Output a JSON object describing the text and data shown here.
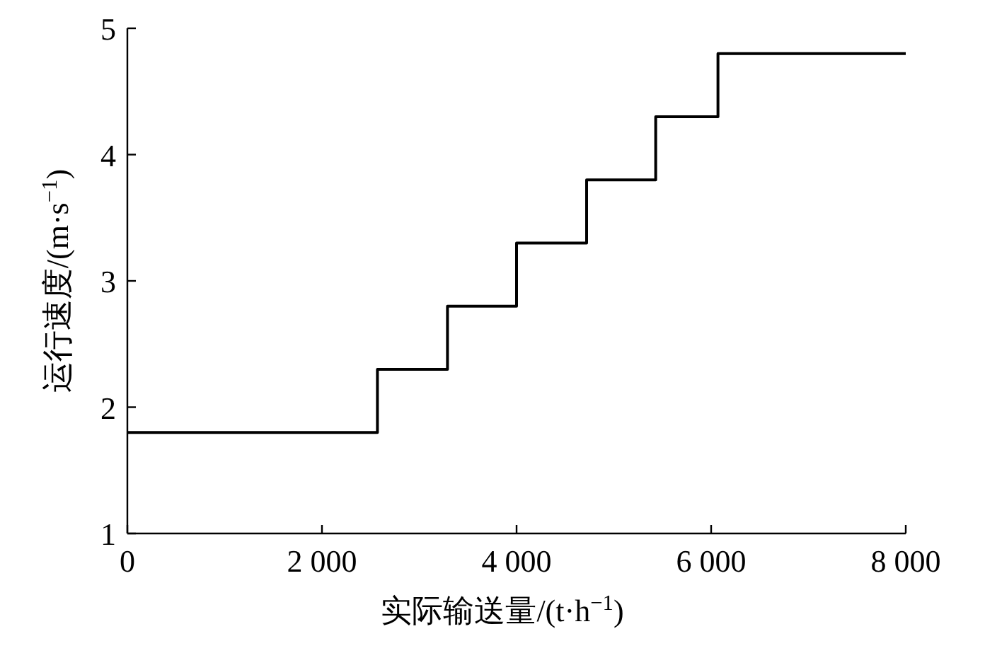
{
  "chart_data": {
    "type": "step",
    "xlabel": "实际输送量/(t·h$^{−1}$)",
    "ylabel": "运行速度/(m·s$^{−1}$)",
    "x": [
      0,
      2570,
      3290,
      4000,
      4720,
      5430,
      6070,
      8000
    ],
    "series": [
      {
        "color": "#000000",
        "values": [
          1.8,
          2.3,
          2.8,
          3.3,
          3.8,
          4.3,
          4.8,
          4.8
        ]
      }
    ],
    "xlim": [
      0,
      8000
    ],
    "ylim": [
      1,
      5
    ],
    "xticks": [
      0,
      {
        "value": 2000,
        "label": "2 000"
      },
      {
        "value": 4000,
        "label": "4 000"
      },
      {
        "value": 6000,
        "label": "6 000"
      },
      {
        "value": 8000,
        "label": "8 000"
      }
    ],
    "yticks": [
      1,
      2,
      3,
      4,
      5
    ],
    "grid": false,
    "marker": "none",
    "line_style": "solid"
  }
}
